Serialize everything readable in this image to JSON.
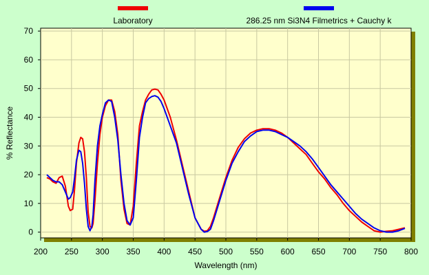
{
  "chart_data": {
    "type": "line",
    "title": "",
    "xlabel": "Wavelength (nm)",
    "ylabel": "% Reflectance",
    "xlim": [
      200,
      800
    ],
    "ylim": [
      -2,
      71
    ],
    "xticks": [
      200,
      250,
      300,
      350,
      400,
      450,
      500,
      550,
      600,
      650,
      700,
      750,
      800
    ],
    "yticks": [
      0,
      10,
      20,
      30,
      40,
      50,
      60,
      70
    ],
    "grid": true,
    "legend_position": "top",
    "plot_background": "#ffffcc",
    "page_background": "#ccffcc",
    "frame_shadow_color": "#808000",
    "series": [
      {
        "name": "Laboratory",
        "color": "#ee0000",
        "x": [
          210,
          215,
          220,
          225,
          230,
          235,
          240,
          245,
          248,
          252,
          255,
          258,
          262,
          265,
          268,
          271,
          274,
          277,
          280,
          283,
          285,
          288,
          292,
          296,
          300,
          305,
          310,
          315,
          320,
          325,
          330,
          335,
          340,
          345,
          350,
          355,
          360,
          365,
          370,
          375,
          380,
          385,
          390,
          395,
          400,
          405,
          410,
          415,
          420,
          430,
          440,
          450,
          460,
          465,
          470,
          475,
          480,
          490,
          500,
          510,
          520,
          530,
          540,
          550,
          560,
          570,
          580,
          590,
          600,
          610,
          620,
          630,
          640,
          650,
          660,
          670,
          680,
          690,
          700,
          710,
          720,
          730,
          740,
          750,
          760,
          770,
          780,
          790
        ],
        "y": [
          19,
          18.5,
          17.5,
          17,
          19,
          19.5,
          16,
          9,
          7.5,
          8,
          15,
          24,
          31,
          33,
          32.5,
          28,
          19,
          7,
          2,
          1.5,
          3,
          11,
          24,
          34,
          40,
          44,
          46,
          46,
          42,
          34,
          18,
          8,
          3,
          2.5,
          9,
          24,
          37,
          42,
          46,
          48,
          49.5,
          49.8,
          49.5,
          48,
          46,
          43,
          40,
          36,
          32,
          23,
          14,
          5,
          1,
          0.3,
          0.5,
          2,
          5,
          12,
          19,
          25,
          29.5,
          32.5,
          34.5,
          35.5,
          36,
          36,
          35.5,
          34.5,
          33,
          31,
          29,
          27,
          24,
          21,
          18.5,
          15.5,
          13,
          10,
          7.5,
          5.5,
          3.5,
          2,
          0.5,
          0,
          0.3,
          0.5,
          1,
          1.5
        ]
      },
      {
        "name": "286.25 nm Si3N4 Filmetrics + Cauchy k",
        "color": "#0000ee",
        "x": [
          210,
          215,
          220,
          225,
          230,
          235,
          240,
          245,
          248,
          252,
          255,
          258,
          262,
          265,
          268,
          271,
          274,
          277,
          280,
          283,
          285,
          288,
          292,
          296,
          300,
          305,
          310,
          315,
          320,
          325,
          330,
          335,
          340,
          345,
          350,
          355,
          360,
          365,
          370,
          375,
          380,
          385,
          390,
          395,
          400,
          405,
          410,
          415,
          420,
          430,
          440,
          450,
          460,
          465,
          470,
          475,
          480,
          490,
          500,
          510,
          520,
          530,
          540,
          550,
          560,
          570,
          580,
          590,
          600,
          610,
          620,
          630,
          640,
          650,
          660,
          670,
          680,
          690,
          700,
          710,
          720,
          730,
          740,
          750,
          760,
          770,
          780,
          790
        ],
        "y": [
          20,
          19,
          18,
          17.5,
          17.5,
          16.5,
          14,
          11.5,
          12,
          14,
          19,
          25,
          28.5,
          28,
          24,
          17,
          8,
          2,
          0.5,
          2,
          6,
          18,
          30,
          37,
          41,
          45,
          46,
          45.5,
          40,
          32,
          20,
          10,
          4,
          2.5,
          5,
          18,
          33,
          40,
          45,
          46.5,
          47.2,
          47.5,
          47,
          45.5,
          43,
          40,
          37,
          34,
          31,
          22,
          13,
          5,
          1,
          0,
          0.2,
          1,
          4,
          11,
          18,
          24,
          28,
          31.5,
          33.5,
          35,
          35.5,
          35.5,
          35,
          34,
          33,
          31.5,
          30,
          28,
          25.5,
          22.5,
          19.5,
          16.5,
          14,
          11.5,
          9,
          6.5,
          4.5,
          3,
          1.5,
          0.5,
          0,
          0,
          0.5,
          1.3
        ]
      }
    ]
  }
}
